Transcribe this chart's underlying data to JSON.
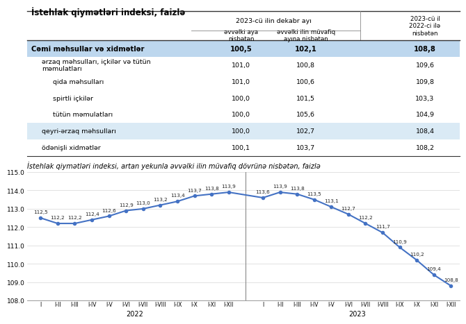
{
  "table_title": "İstehlak qiymətləri indeksi, faizlə",
  "chart_title": "İstehlak qiymətləri indeksi, artan yekunla əvvəlki ilin müvafiq dövrünə nisbətən, faizlə",
  "rows": [
    {
      "label": "Cəmi məhsullar və xidmətlər",
      "v1": "100,5",
      "v2": "102,1",
      "v3": "108,8",
      "bold": true,
      "highlight": "blue",
      "indent": 0
    },
    {
      "label": "ərzaq məhsulları, içkilər və tütün\nməmulatları",
      "v1": "101,0",
      "v2": "100,8",
      "v3": "109,6",
      "bold": false,
      "highlight": "none",
      "indent": 1
    },
    {
      "label": "qida məhsulları",
      "v1": "101,0",
      "v2": "100,6",
      "v3": "109,8",
      "bold": false,
      "highlight": "none",
      "indent": 2
    },
    {
      "label": "spirtli içkilər",
      "v1": "100,0",
      "v2": "101,5",
      "v3": "103,3",
      "bold": false,
      "highlight": "none",
      "indent": 2
    },
    {
      "label": "tütün məmulatları",
      "v1": "100,0",
      "v2": "105,6",
      "v3": "104,9",
      "bold": false,
      "highlight": "none",
      "indent": 2
    },
    {
      "label": "qeyri-ərzaq məhsulları",
      "v1": "100,0",
      "v2": "102,7",
      "v3": "108,4",
      "bold": false,
      "highlight": "light",
      "indent": 1
    },
    {
      "label": "ödənişli xidmətlər",
      "v1": "100,1",
      "v2": "103,7",
      "v3": "108,2",
      "bold": false,
      "highlight": "none",
      "indent": 1
    }
  ],
  "bold_row_bg": "#BDD7EE",
  "alt_row_bg": "#DAEAF5",
  "line_data": {
    "labels_2022": [
      "I",
      "I-II",
      "I-III",
      "I-IV",
      "I-V",
      "I-VI",
      "I-VII",
      "I-VIII",
      "I-IX",
      "I-X",
      "I-XI",
      "I-XII"
    ],
    "labels_2023": [
      "I",
      "I-II",
      "I-III",
      "I-IV",
      "I-V",
      "I-VI",
      "I-VII",
      "I-VIII",
      "I-IX",
      "I-X",
      "I-XI",
      "I-XII"
    ],
    "values_2022": [
      112.5,
      112.2,
      112.2,
      112.4,
      112.6,
      112.9,
      113.0,
      113.2,
      113.4,
      113.7,
      113.8,
      113.9
    ],
    "values_2023": [
      113.6,
      113.9,
      113.8,
      113.5,
      113.1,
      112.7,
      112.2,
      111.7,
      110.9,
      110.2,
      109.4,
      108.8
    ],
    "ylim": [
      108.0,
      115.0
    ],
    "yticks": [
      108.0,
      109.0,
      110.0,
      111.0,
      112.0,
      113.0,
      114.0,
      115.0
    ],
    "line_color": "#4472C4",
    "marker_color": "#4472C4"
  }
}
